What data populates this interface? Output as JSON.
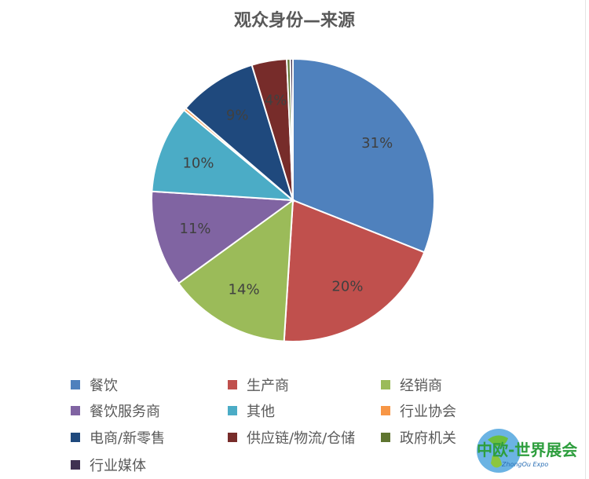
{
  "chart_data": {
    "type": "pie",
    "title": "观众身份—来源",
    "legend_position": "bottom",
    "slices": [
      {
        "name": "餐饮",
        "value": 31,
        "label": "31%",
        "color": "#4f81bd"
      },
      {
        "name": "生产商",
        "value": 20,
        "label": "20%",
        "color": "#c0504d"
      },
      {
        "name": "经销商",
        "value": 14,
        "label": "14%",
        "color": "#9bbb59"
      },
      {
        "name": "餐饮服务商",
        "value": 11,
        "label": "11%",
        "color": "#8064a2"
      },
      {
        "name": "其他",
        "value": 10,
        "label": "10%",
        "color": "#4bacc6"
      },
      {
        "name": "行业协会",
        "value": 0.3,
        "label": "",
        "color": "#f79646"
      },
      {
        "name": "电商/新零售",
        "value": 9,
        "label": "9%",
        "color": "#1f497d"
      },
      {
        "name": "供应链/物流/仓储",
        "value": 4,
        "label": "4%",
        "color": "#772c2a"
      },
      {
        "name": "政府机关",
        "value": 0.4,
        "label": "",
        "color": "#5f7530"
      },
      {
        "name": "行业媒体",
        "value": 0.3,
        "label": "",
        "color": "#3f3151"
      }
    ]
  },
  "logo": {
    "text": "中欧-世界展会",
    "subtext": "ZhongOu Expo"
  }
}
